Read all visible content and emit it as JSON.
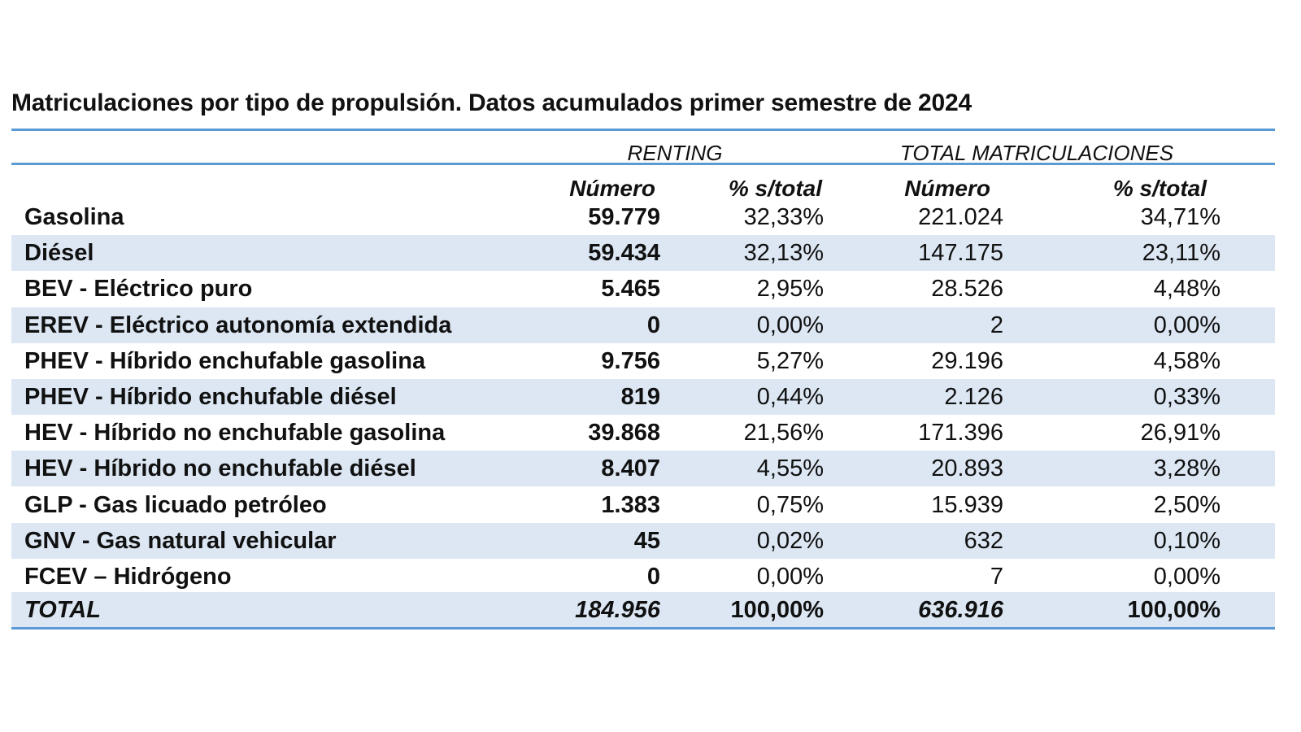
{
  "title": "Matriculaciones por tipo de propulsión. Datos acumulados primer semestre de 2024",
  "groups": {
    "renting": "RENTING",
    "total": "TOTAL MATRICULACIONES"
  },
  "subheaders": {
    "renting_numero": "Número",
    "renting_pct": "% s/total",
    "total_numero": "Número",
    "total_pct": "% s/total"
  },
  "rows": [
    {
      "label": "Gasolina",
      "renting_numero": "59.779",
      "renting_pct": "32,33%",
      "total_numero": "221.024",
      "total_pct": "34,71%"
    },
    {
      "label": "Diésel",
      "renting_numero": "59.434",
      "renting_pct": "32,13%",
      "total_numero": "147.175",
      "total_pct": "23,11%"
    },
    {
      "label": "BEV - Eléctrico puro",
      "renting_numero": "5.465",
      "renting_pct": "2,95%",
      "total_numero": "28.526",
      "total_pct": "4,48%"
    },
    {
      "label": "EREV - Eléctrico autonomía extendida",
      "renting_numero": "0",
      "renting_pct": "0,00%",
      "total_numero": "2",
      "total_pct": "0,00%"
    },
    {
      "label": "PHEV - Híbrido enchufable gasolina",
      "renting_numero": "9.756",
      "renting_pct": "5,27%",
      "total_numero": "29.196",
      "total_pct": "4,58%"
    },
    {
      "label": "PHEV - Híbrido enchufable diésel",
      "renting_numero": "819",
      "renting_pct": "0,44%",
      "total_numero": "2.126",
      "total_pct": "0,33%"
    },
    {
      "label": "HEV - Híbrido no enchufable gasolina",
      "renting_numero": "39.868",
      "renting_pct": "21,56%",
      "total_numero": "171.396",
      "total_pct": "26,91%"
    },
    {
      "label": "HEV - Híbrido no enchufable diésel",
      "renting_numero": "8.407",
      "renting_pct": "4,55%",
      "total_numero": "20.893",
      "total_pct": "3,28%"
    },
    {
      "label": "GLP - Gas licuado petróleo",
      "renting_numero": "1.383",
      "renting_pct": "0,75%",
      "total_numero": "15.939",
      "total_pct": "2,50%"
    },
    {
      "label": "GNV - Gas natural vehicular",
      "renting_numero": "45",
      "renting_pct": "0,02%",
      "total_numero": "632",
      "total_pct": "0,10%"
    },
    {
      "label": "FCEV – Hidrógeno",
      "renting_numero": "0",
      "renting_pct": "0,00%",
      "total_numero": "7",
      "total_pct": "0,00%"
    }
  ],
  "total": {
    "label": "TOTAL",
    "renting_numero": "184.956",
    "renting_pct": "100,00%",
    "total_numero": "636.916",
    "total_pct": "100,00%"
  },
  "colors": {
    "band": "#dce7f3",
    "rule": "#5b9bd5"
  }
}
